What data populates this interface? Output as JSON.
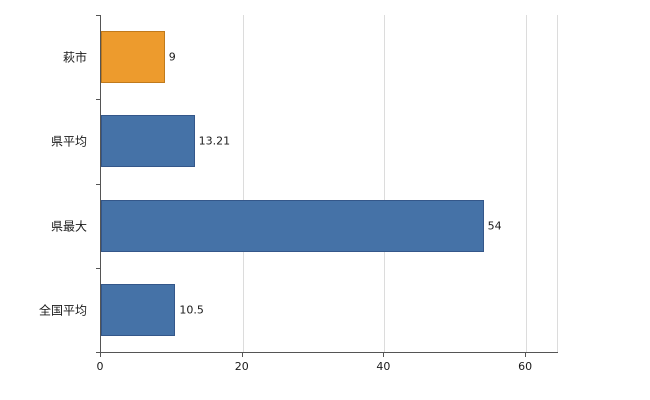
{
  "chart_data": {
    "type": "bar",
    "orientation": "horizontal",
    "title": "",
    "xlabel": "",
    "ylabel": "",
    "categories": [
      "萩市",
      "県平均",
      "県最大",
      "全国平均"
    ],
    "values": [
      9,
      13.21,
      54,
      10.5
    ],
    "value_labels": [
      "9",
      "13.21",
      "54",
      "10.5"
    ],
    "bar_colors": [
      "#ED9B2D",
      "#4572A7",
      "#4572A7",
      "#4572A7"
    ],
    "bar_border_colors": [
      "#c07a1c",
      "#34578a",
      "#34578a",
      "#34578a"
    ],
    "x_ticks": [
      0,
      20,
      40,
      60
    ],
    "x_tick_labels": [
      "0",
      "20",
      "40",
      "60"
    ],
    "xlim": [
      0,
      64.5
    ],
    "grid": true,
    "grid_color": "#dcdcdc",
    "axis_color": "#555555",
    "background_color": "#ffffff",
    "legend": "none"
  }
}
